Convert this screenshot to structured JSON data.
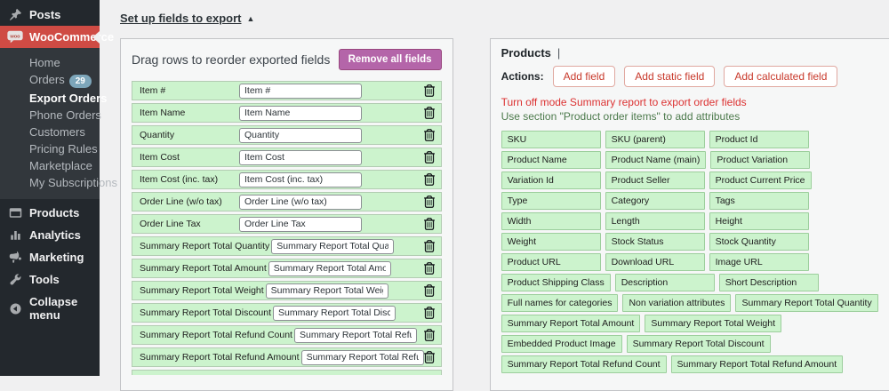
{
  "colors": {
    "sidebar_bg": "#23282d",
    "submenu_bg": "#32373c",
    "active_menu_red": "#cf4b44",
    "orders_badge_blue": "#7da6ba",
    "field_green_bg": "#ccf3cd",
    "chip_green_border": "#9cce9c",
    "remove_button_purple": "#b465a9",
    "action_button_red": "#c8392b",
    "warning_red": "#dc3232",
    "hint_green": "#4c7a4c"
  },
  "sidebar": {
    "posts_label": "Posts",
    "woocommerce_label": "WooCommerce",
    "submenu": [
      {
        "label": "Home"
      },
      {
        "label": "Orders",
        "badge": "29"
      },
      {
        "label": "Export Orders",
        "current": true
      },
      {
        "label": "Phone Orders"
      },
      {
        "label": "Customers"
      },
      {
        "label": "Pricing Rules"
      },
      {
        "label": "Marketplace"
      },
      {
        "label": "My Subscriptions"
      }
    ],
    "bottom_items": [
      {
        "label": "Products"
      },
      {
        "label": "Analytics"
      },
      {
        "label": "Marketing"
      },
      {
        "label": "Tools"
      },
      {
        "label": "Collapse menu"
      }
    ]
  },
  "setup": {
    "link_label": "Set up fields to export",
    "caret": "▲"
  },
  "left_panel": {
    "title": "Drag rows to reorder exported fields",
    "remove_all_label": "Remove all fields",
    "rows": [
      {
        "label": "Item #",
        "value": "Item #"
      },
      {
        "label": "Item Name",
        "value": "Item Name"
      },
      {
        "label": "Quantity",
        "value": "Quantity"
      },
      {
        "label": "Item Cost",
        "value": "Item Cost"
      },
      {
        "label": "Item Cost (inc. tax)",
        "value": "Item Cost (inc. tax)"
      },
      {
        "label": "Order Line (w/o tax)",
        "value": "Order Line (w/o tax)"
      },
      {
        "label": "Order Line Tax",
        "value": "Order Line Tax"
      },
      {
        "label": "Summary Report Total Quantity",
        "value": "Summary Report Total Quantity"
      },
      {
        "label": "Summary Report Total Amount",
        "value": "Summary Report Total Amount"
      },
      {
        "label": "Summary Report Total Weight",
        "value": "Summary Report Total Weight"
      },
      {
        "label": "Summary Report Total Discount",
        "value": "Summary Report Total Discount"
      },
      {
        "label": "Summary Report Total Refund Count",
        "value": "Summary Report Total Refund Count"
      },
      {
        "label": "Summary Report Total Refund Amount",
        "value": "Summary Report Total Refund Amount"
      }
    ]
  },
  "right_panel": {
    "tab_label": "Products",
    "tab_separator": "|",
    "actions_label": "Actions:",
    "action_buttons": [
      "Add field",
      "Add static field",
      "Add calculated field"
    ],
    "warning_red": "Turn off mode Summary report to export order fields",
    "hint_green": "Use section \"Product order items\" to add attributes",
    "field_rows": [
      [
        "SKU",
        "SKU (parent)",
        "Product Id"
      ],
      [
        "Product Name",
        "Product Name (main)",
        "Product Variation"
      ],
      [
        "Variation Id",
        "Product Seller",
        "Product Current Price"
      ],
      [
        "Type",
        "Category",
        "Tags"
      ],
      [
        "Width",
        "Length",
        "Height"
      ],
      [
        "Weight",
        "Stock Status",
        "Stock Quantity"
      ],
      [
        "Product URL",
        "Download URL",
        "Image URL"
      ],
      [
        "Product Shipping Class",
        "Description",
        "Short Description"
      ],
      [
        "Full names for categories",
        "Non variation attributes",
        "Summary Report Total Quantity"
      ],
      [
        "Summary Report Total Amount",
        "Summary Report Total Weight"
      ],
      [
        "Embedded Product Image",
        "Summary Report Total Discount"
      ],
      [
        "Summary Report Total Refund Count",
        "Summary Report Total Refund Amount"
      ]
    ]
  }
}
